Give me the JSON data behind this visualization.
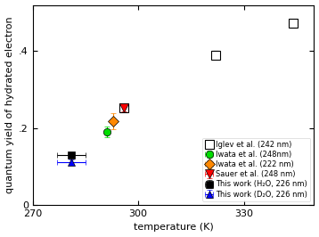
{
  "xlabel": "temperature (K)",
  "ylabel": "quantum yield of hydrated electron",
  "xlim": [
    270,
    350
  ],
  "ylim": [
    0,
    0.52
  ],
  "xticks": [
    270,
    300,
    330
  ],
  "yticks": [
    0.0,
    0.2,
    0.4
  ],
  "yticklabels": [
    "0",
    ".2",
    ".4"
  ],
  "iwata_248": {
    "x": [
      291
    ],
    "y": [
      0.19
    ],
    "xerr": [
      0
    ],
    "yerr": [
      0.013
    ],
    "color": "#00dd00",
    "marker": "o",
    "label": "Iwata et al. (248nm)"
  },
  "iwata_222": {
    "x": [
      293
    ],
    "y": [
      0.218
    ],
    "xerr": [
      0
    ],
    "yerr": [
      0.02
    ],
    "color": "#ff8800",
    "marker": "D",
    "label": "Iwata et al. (222 nm)"
  },
  "sauer_248": {
    "x": [
      296
    ],
    "y": [
      0.252
    ],
    "xerr": [
      0
    ],
    "yerr": [
      0.008
    ],
    "color": "#ff0000",
    "marker": "v",
    "label": "Sauer et al. (248 nm)"
  },
  "iglev_242": {
    "x": [
      296,
      322,
      344
    ],
    "y": [
      0.252,
      0.39,
      0.472
    ],
    "xerr": [
      1,
      1,
      1
    ],
    "yerr": [
      0.008,
      0.01,
      0.01
    ],
    "facecolor": "white",
    "edgecolor": "black",
    "marker": "s",
    "label": "Iglev et al. (242 nm)"
  },
  "this_h2o": {
    "x": [
      281
    ],
    "y": [
      0.13
    ],
    "xerr": [
      4
    ],
    "yerr": [
      0.007
    ],
    "color": "#000000",
    "marker": "s",
    "label": "This work (H₂O, 226 nm)"
  },
  "this_d2o": {
    "x": [
      281
    ],
    "y": [
      0.112
    ],
    "xerr": [
      4
    ],
    "yerr": [
      0.007
    ],
    "color": "#0000ff",
    "marker": "^",
    "label": "This work (D₂O, 226 nm)"
  },
  "figsize": [
    3.58,
    2.66
  ],
  "dpi": 100
}
